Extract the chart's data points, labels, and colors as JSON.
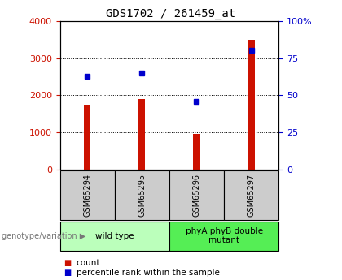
{
  "title": "GDS1702 / 261459_at",
  "samples": [
    "GSM65294",
    "GSM65295",
    "GSM65296",
    "GSM65297"
  ],
  "counts": [
    1750,
    1900,
    950,
    3500
  ],
  "percentiles": [
    63,
    65,
    46,
    80
  ],
  "groups": [
    {
      "label": "wild type",
      "samples": [
        0,
        1
      ],
      "color": "#bbffbb"
    },
    {
      "label": "phyA phyB double\nmutant",
      "samples": [
        2,
        3
      ],
      "color": "#55ee55"
    }
  ],
  "bar_color": "#cc1100",
  "dot_color": "#0000cc",
  "ylim_left": [
    0,
    4000
  ],
  "ylim_right": [
    0,
    100
  ],
  "yticks_left": [
    0,
    1000,
    2000,
    3000,
    4000
  ],
  "yticks_right": [
    0,
    25,
    50,
    75,
    100
  ],
  "plot_bg": "#ffffff",
  "legend_label_count": "count",
  "legend_label_pct": "percentile rank within the sample",
  "genotype_label": "genotype/variation",
  "title_fontsize": 10,
  "tick_fontsize": 8,
  "cell_gray": "#cccccc",
  "bar_width": 0.12
}
